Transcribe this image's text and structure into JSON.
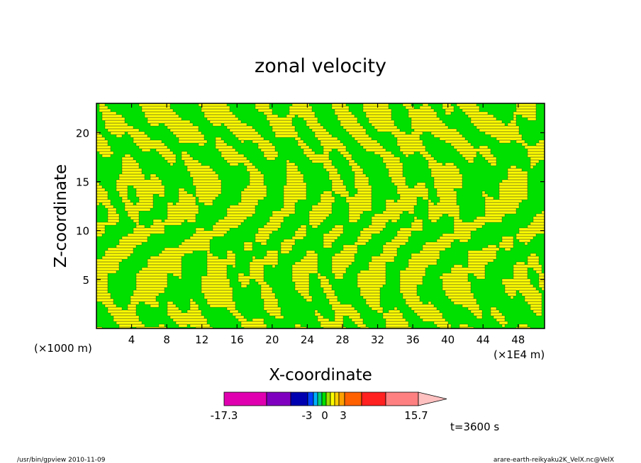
{
  "chart_data": {
    "type": "heatmap",
    "title": "zonal velocity",
    "xlabel": "X-coordinate",
    "ylabel": "Z-coordinate",
    "x_unit_left": "(×1000 m)",
    "x_unit_right": "(×1E4 m)",
    "xlim": [
      0,
      51
    ],
    "ylim": [
      0,
      23
    ],
    "x_ticks": [
      4,
      8,
      12,
      16,
      20,
      24,
      28,
      32,
      36,
      40,
      44,
      48
    ],
    "y_ticks": [
      5,
      10,
      15,
      20
    ],
    "grid": false,
    "dominant_levels": [
      {
        "range": "-3 to -1.5",
        "color": "#00e000"
      },
      {
        "range": "0 to 1.5",
        "color": "#ffff00"
      }
    ],
    "colorbar": {
      "min_label": "-17.3",
      "max_label": "15.7",
      "mid_labels": [
        "-3",
        "0",
        "3"
      ],
      "bins": [
        {
          "color": "#e000b0",
          "w": 60
        },
        {
          "color": "#8000c0",
          "w": 34
        },
        {
          "color": "#0000b0",
          "w": 24
        },
        {
          "color": "#0040ff",
          "w": 8
        },
        {
          "color": "#00b0ff",
          "w": 6
        },
        {
          "color": "#00d080",
          "w": 6
        },
        {
          "color": "#00e000",
          "w": 6
        },
        {
          "color": "#a0e000",
          "w": 6
        },
        {
          "color": "#ffff00",
          "w": 6
        },
        {
          "color": "#ffd000",
          "w": 6
        },
        {
          "color": "#ffa000",
          "w": 8
        },
        {
          "color": "#ff6000",
          "w": 24
        },
        {
          "color": "#ff2020",
          "w": 34
        },
        {
          "color": "#ff8080",
          "w": 46
        }
      ],
      "overflow_color": "#ffc0c0"
    },
    "time_label": "t=3600 s"
  },
  "footer": {
    "left": "/usr/bin/gpview 2010-11-09",
    "right": "arare-earth-reikyaku2K_VelX.nc@VelX"
  }
}
